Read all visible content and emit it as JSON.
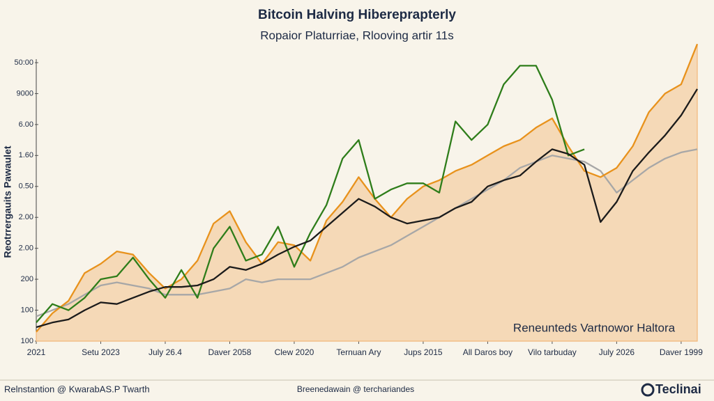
{
  "chart_data": {
    "type": "line",
    "title": "Bitcoin Halving Hiberерrapterly",
    "subtitle": "Ropaior Platurriae, Rlooving artir 11s",
    "y_label": "Reotrrergauits Pawaulet",
    "annotation": "Reneunteds Vartnowor Haltora",
    "x": [
      0,
      1,
      2,
      3,
      4,
      5,
      6,
      7,
      8,
      9,
      10,
      11,
      12,
      13,
      14,
      15,
      16,
      17,
      18,
      19,
      20,
      21,
      22,
      23,
      24,
      25,
      26,
      27,
      28,
      29,
      30,
      31,
      32,
      33,
      34,
      35,
      36,
      37,
      38,
      39,
      40,
      41
    ],
    "xlim": [
      0,
      41
    ],
    "xticks": [
      {
        "value": 0,
        "label": "2021"
      },
      {
        "value": 4,
        "label": "Setu 2023"
      },
      {
        "value": 8,
        "label": "July 26.4"
      },
      {
        "value": 12,
        "label": "Daver 2058"
      },
      {
        "value": 16,
        "label": "Clew 2020"
      },
      {
        "value": 20,
        "label": "Ternuan Ary"
      },
      {
        "value": 24,
        "label": "Jups 2015"
      },
      {
        "value": 28,
        "label": "All Daros boy"
      },
      {
        "value": 32,
        "label": "Vilo tarbuday"
      },
      {
        "value": 36,
        "label": "July 2026"
      },
      {
        "value": 40,
        "label": "Daver 1999"
      }
    ],
    "ylim": [
      0,
      9.9
    ],
    "yticks": [
      {
        "value": 0,
        "label": "100"
      },
      {
        "value": 1,
        "label": "100"
      },
      {
        "value": 2,
        "label": "200"
      },
      {
        "value": 3,
        "label": "2.00"
      },
      {
        "value": 4,
        "label": "2.00"
      },
      {
        "value": 5,
        "label": "0.50"
      },
      {
        "value": 6,
        "label": "1.60"
      },
      {
        "value": 7,
        "label": "6.00"
      },
      {
        "value": 8,
        "label": "9000"
      },
      {
        "value": 9,
        "label": "50:00"
      }
    ],
    "series": [
      {
        "color": "#f2b77a",
        "fill": true,
        "values": [
          0.3,
          0.9,
          1.3,
          2.2,
          2.5,
          2.9,
          2.8,
          2.2,
          1.7,
          2.0,
          2.6,
          3.8,
          4.2,
          3.2,
          2.5,
          3.2,
          3.1,
          2.6,
          3.9,
          4.5,
          5.3,
          4.6,
          4.0,
          4.6,
          5.0,
          5.2,
          5.5,
          5.7,
          6.0,
          6.3,
          6.5,
          6.9,
          7.2,
          6.3,
          5.5,
          5.3,
          5.6,
          6.3,
          7.4,
          8.0,
          8.3,
          9.6
        ]
      },
      {
        "color": "#a7a7a7",
        "fill": false,
        "values": [
          0.8,
          1.0,
          1.2,
          1.5,
          1.8,
          1.9,
          1.8,
          1.7,
          1.5,
          1.5,
          1.5,
          1.6,
          1.7,
          2.0,
          1.9,
          2.0,
          2.0,
          2.0,
          2.2,
          2.4,
          2.7,
          2.9,
          3.1,
          3.4,
          3.7,
          4.0,
          4.3,
          4.6,
          4.9,
          5.2,
          5.6,
          5.8,
          6.0,
          5.9,
          5.8,
          5.5,
          4.8,
          5.2,
          5.6,
          5.9,
          6.1,
          6.2
        ]
      },
      {
        "color": "#e8921c",
        "fill": false,
        "values": [
          0.3,
          0.9,
          1.3,
          2.2,
          2.5,
          2.9,
          2.8,
          2.2,
          1.7,
          2.0,
          2.6,
          3.8,
          4.2,
          3.2,
          2.5,
          3.2,
          3.1,
          2.6,
          3.9,
          4.5,
          5.3,
          4.6,
          4.0,
          4.6,
          5.0,
          5.2,
          5.5,
          5.7,
          6.0,
          6.3,
          6.5,
          6.9,
          7.2,
          6.3,
          5.5,
          5.3,
          5.6,
          6.3,
          7.4,
          8.0,
          8.3,
          9.6
        ]
      },
      {
        "color": "#2e7d1a",
        "fill": false,
        "values": [
          0.6,
          1.2,
          1.0,
          1.4,
          2.0,
          2.1,
          2.7,
          2.0,
          1.4,
          2.3,
          1.4,
          3.0,
          3.7,
          2.6,
          2.8,
          3.7,
          2.4,
          3.5,
          4.4,
          5.9,
          6.5,
          4.6,
          4.9,
          5.1,
          5.1,
          4.8,
          7.1,
          6.5,
          7.0,
          8.3,
          8.9,
          8.9,
          7.8,
          6.0,
          6.2,
          null,
          null,
          null,
          null,
          null,
          null,
          null
        ]
      },
      {
        "color": "#1b1b1b",
        "fill": false,
        "values": [
          0.45,
          0.6,
          0.7,
          1.0,
          1.25,
          1.2,
          1.4,
          1.6,
          1.75,
          1.75,
          1.8,
          2.0,
          2.4,
          2.3,
          2.5,
          2.8,
          3.05,
          3.25,
          3.7,
          4.15,
          4.6,
          4.35,
          4.0,
          3.8,
          3.9,
          4.0,
          4.3,
          4.5,
          5.0,
          5.2,
          5.35,
          5.8,
          6.2,
          6.05,
          5.7,
          3.85,
          4.5,
          5.5,
          6.1,
          6.65,
          7.3,
          8.15
        ]
      }
    ]
  },
  "footer": {
    "left": "Relnstantion @ KwarabAS.P Twarth",
    "center": "Breenedawain @ terchariandes",
    "brand": "Teclinai"
  }
}
